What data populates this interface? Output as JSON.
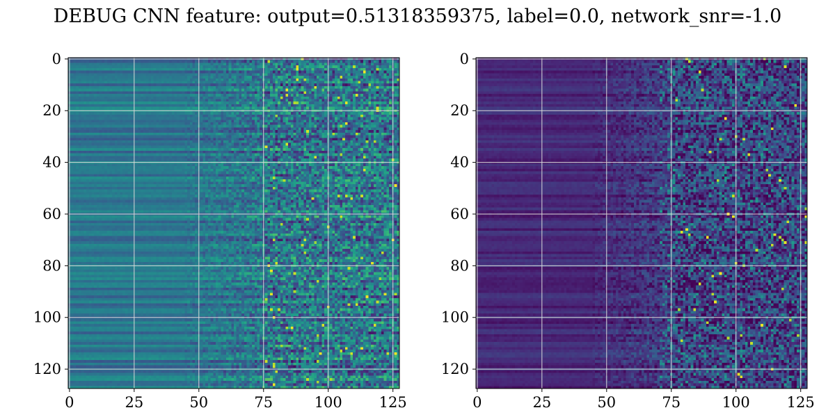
{
  "figure": {
    "title": "DEBUG CNN feature: output=0.51318359375, label=0.0, network_snr=-1.0"
  },
  "chart_data": [
    {
      "type": "heatmap",
      "title": "",
      "xlabel": "",
      "ylabel": "",
      "xlim": [
        0,
        127
      ],
      "ylim": [
        127,
        0
      ],
      "xticks": [
        0,
        25,
        50,
        75,
        100,
        125
      ],
      "yticks": [
        0,
        20,
        40,
        60,
        80,
        100,
        120
      ],
      "grid": true,
      "colormap": "viridis",
      "rows": 128,
      "cols": 128,
      "description_of_values": "left panel: dense mid-level (teal) features with horizontal stripes, noisier values for columns > 75"
    },
    {
      "type": "heatmap",
      "title": "",
      "xlabel": "",
      "ylabel": "",
      "xlim": [
        0,
        127
      ],
      "ylim": [
        127,
        0
      ],
      "xticks": [
        0,
        25,
        50,
        75,
        100,
        125
      ],
      "yticks": [
        0,
        20,
        40,
        60,
        80,
        100,
        120
      ],
      "grid": true,
      "colormap": "viridis",
      "rows": 128,
      "cols": 128,
      "description_of_values": "right panel: mostly low (dark purple) values with sparse bright speckles for columns > 75"
    }
  ],
  "colors": {
    "viridis_low": "#440154",
    "viridis_mid": "#21918c",
    "viridis_high": "#fde725",
    "grid": "#d9d9d9"
  }
}
